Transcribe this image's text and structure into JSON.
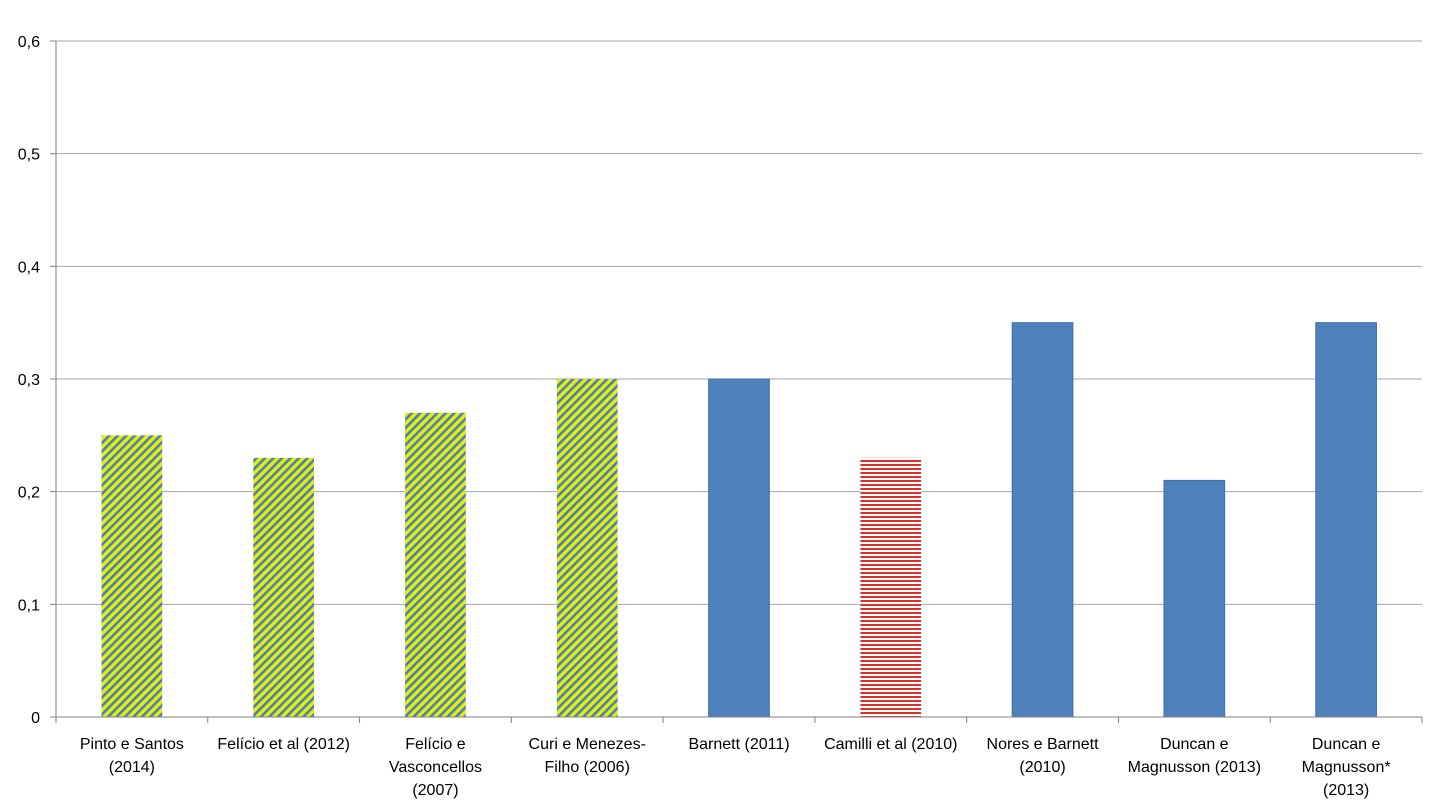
{
  "chart_data": {
    "type": "bar",
    "categories": [
      [
        "Pinto e Santos",
        "(2014)"
      ],
      [
        "Felício et al (2012)"
      ],
      [
        "Felício e",
        "Vasconcellos",
        "(2007)"
      ],
      [
        "Curi e Menezes-",
        "Filho (2006)"
      ],
      [
        "Barnett (2011)"
      ],
      [
        "Camilli et al (2010)"
      ],
      [
        "Nores e Barnett",
        "(2010)"
      ],
      [
        "Duncan e",
        "Magnusson (2013)"
      ],
      [
        "Duncan e",
        "Magnusson*",
        "(2013)"
      ]
    ],
    "values": [
      0.25,
      0.23,
      0.27,
      0.3,
      0.3,
      0.23,
      0.35,
      0.21,
      0.35
    ],
    "bar_styles": [
      "yellow-hatch",
      "yellow-hatch",
      "yellow-hatch",
      "yellow-hatch",
      "solid-blue",
      "red-stripe",
      "solid-blue",
      "solid-blue",
      "solid-blue"
    ],
    "yticks": [
      "0",
      "0,1",
      "0,2",
      "0,3",
      "0,4",
      "0,5",
      "0,6"
    ],
    "ylim": [
      0,
      0.6
    ],
    "grid": true,
    "title": "",
    "xlabel": "",
    "ylabel": "",
    "colors": {
      "blue": "#4f81bd",
      "blue_edge": "#3f6fa8",
      "hatch_yellow": "#e4f000",
      "hatch_blue": "#4a7ec4",
      "stripe_red": "#d9302a",
      "stripe_bg": "#ffffff",
      "grid": "#a6a6a6",
      "axis": "#808080"
    }
  }
}
